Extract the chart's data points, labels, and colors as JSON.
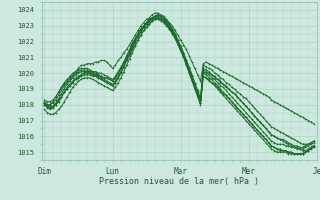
{
  "xlabel": "Pression niveau de la mer( hPa )",
  "ylim": [
    1014.5,
    1024.5
  ],
  "background_color": "#cce8df",
  "plot_bg_color": "#cce8df",
  "grid_color": "#aacfbf",
  "line_color": "#1a6b2a",
  "xtick_labels": [
    "Dim",
    "Lun",
    "Mar",
    "Mer",
    "Je"
  ],
  "xtick_positions": [
    0,
    24,
    48,
    72,
    96
  ],
  "ytick_values": [
    1015,
    1016,
    1017,
    1018,
    1019,
    1020,
    1021,
    1022,
    1023,
    1024
  ],
  "series": [
    [
      1018.0,
      1017.9,
      1018.0,
      1018.2,
      1018.5,
      1018.8,
      1019.1,
      1019.3,
      1019.5,
      1019.7,
      1019.9,
      1020.1,
      1020.3,
      1020.5,
      1020.5,
      1020.6,
      1020.6,
      1020.6,
      1020.7,
      1020.7,
      1020.8,
      1020.8,
      1020.7,
      1020.5,
      1020.3,
      1020.5,
      1020.8,
      1021.0,
      1021.3,
      1021.5,
      1021.8,
      1022.1,
      1022.4,
      1022.7,
      1023.0,
      1023.2,
      1023.4,
      1023.5,
      1023.7,
      1023.8,
      1023.8,
      1023.7,
      1023.6,
      1023.4,
      1023.2,
      1023.0,
      1022.7,
      1022.4,
      1022.1,
      1021.8,
      1021.5,
      1021.1,
      1020.7,
      1020.3,
      1019.9,
      1019.5,
      1020.6,
      1020.7,
      1020.6,
      1020.5,
      1020.4,
      1020.3,
      1020.2,
      1020.1,
      1020.0,
      1019.9,
      1019.8,
      1019.7,
      1019.6,
      1019.5,
      1019.4,
      1019.3,
      1019.2,
      1019.1,
      1019.0,
      1018.9,
      1018.8,
      1018.7,
      1018.6,
      1018.5,
      1018.3,
      1018.2,
      1018.1,
      1018.0,
      1017.9,
      1017.8,
      1017.7,
      1017.6,
      1017.5,
      1017.4,
      1017.3,
      1017.2,
      1017.1,
      1017.0,
      1016.9,
      1016.8
    ],
    [
      1018.0,
      1017.8,
      1017.7,
      1017.8,
      1018.0,
      1018.2,
      1018.5,
      1018.8,
      1019.0,
      1019.2,
      1019.4,
      1019.6,
      1019.7,
      1019.9,
      1020.0,
      1020.1,
      1020.1,
      1020.1,
      1020.1,
      1020.0,
      1020.0,
      1019.9,
      1019.8,
      1019.7,
      1019.6,
      1019.8,
      1020.1,
      1020.4,
      1020.7,
      1021.1,
      1021.4,
      1021.8,
      1022.1,
      1022.4,
      1022.7,
      1022.9,
      1023.1,
      1023.3,
      1023.5,
      1023.6,
      1023.6,
      1023.5,
      1023.4,
      1023.2,
      1023.0,
      1022.7,
      1022.4,
      1022.0,
      1021.6,
      1021.2,
      1020.7,
      1020.3,
      1019.8,
      1019.3,
      1018.8,
      1018.3,
      1020.5,
      1020.4,
      1020.3,
      1020.2,
      1020.0,
      1019.9,
      1019.7,
      1019.6,
      1019.4,
      1019.3,
      1019.1,
      1019.0,
      1018.8,
      1018.7,
      1018.5,
      1018.4,
      1018.2,
      1018.0,
      1017.8,
      1017.6,
      1017.4,
      1017.2,
      1017.0,
      1016.8,
      1016.6,
      1016.5,
      1016.4,
      1016.3,
      1016.2,
      1016.1,
      1016.0,
      1015.9,
      1015.8,
      1015.7,
      1015.6,
      1015.5,
      1015.5,
      1015.5,
      1015.6,
      1015.7
    ],
    [
      1018.1,
      1017.9,
      1017.8,
      1017.8,
      1018.0,
      1018.2,
      1018.5,
      1018.8,
      1019.1,
      1019.3,
      1019.5,
      1019.7,
      1019.8,
      1019.9,
      1020.0,
      1020.0,
      1020.0,
      1019.9,
      1019.9,
      1019.8,
      1019.7,
      1019.6,
      1019.5,
      1019.4,
      1019.3,
      1019.5,
      1019.8,
      1020.1,
      1020.4,
      1020.8,
      1021.1,
      1021.5,
      1021.8,
      1022.1,
      1022.4,
      1022.7,
      1022.9,
      1023.1,
      1023.3,
      1023.4,
      1023.4,
      1023.3,
      1023.2,
      1023.0,
      1022.8,
      1022.6,
      1022.3,
      1021.9,
      1021.5,
      1021.1,
      1020.6,
      1020.1,
      1019.6,
      1019.1,
      1018.6,
      1018.1,
      1020.2,
      1020.1,
      1020.0,
      1019.9,
      1019.7,
      1019.6,
      1019.4,
      1019.3,
      1019.1,
      1019.0,
      1018.8,
      1018.7,
      1018.5,
      1018.3,
      1018.1,
      1017.9,
      1017.7,
      1017.5,
      1017.3,
      1017.1,
      1016.9,
      1016.7,
      1016.5,
      1016.3,
      1016.1,
      1016.0,
      1015.9,
      1015.8,
      1015.7,
      1015.6,
      1015.5,
      1015.4,
      1015.3,
      1015.2,
      1015.2,
      1015.1,
      1015.1,
      1015.2,
      1015.3,
      1015.4
    ],
    [
      1018.2,
      1018.0,
      1018.0,
      1018.1,
      1018.3,
      1018.6,
      1018.9,
      1019.2,
      1019.4,
      1019.6,
      1019.8,
      1020.0,
      1020.1,
      1020.2,
      1020.2,
      1020.2,
      1020.1,
      1020.0,
      1019.9,
      1019.9,
      1019.8,
      1019.7,
      1019.7,
      1019.6,
      1019.5,
      1019.7,
      1020.0,
      1020.3,
      1020.7,
      1021.0,
      1021.4,
      1021.8,
      1022.1,
      1022.5,
      1022.8,
      1023.0,
      1023.2,
      1023.4,
      1023.5,
      1023.6,
      1023.7,
      1023.6,
      1023.5,
      1023.3,
      1023.1,
      1022.8,
      1022.5,
      1022.1,
      1021.7,
      1021.3,
      1020.8,
      1020.4,
      1019.9,
      1019.4,
      1018.9,
      1018.4,
      1020.3,
      1020.2,
      1020.1,
      1019.9,
      1019.8,
      1019.6,
      1019.5,
      1019.3,
      1019.2,
      1019.0,
      1018.8,
      1018.7,
      1018.5,
      1018.3,
      1018.1,
      1017.9,
      1017.7,
      1017.5,
      1017.3,
      1017.1,
      1016.9,
      1016.7,
      1016.5,
      1016.3,
      1016.1,
      1016.0,
      1015.9,
      1015.8,
      1015.8,
      1015.7,
      1015.6,
      1015.5,
      1015.4,
      1015.4,
      1015.3,
      1015.3,
      1015.4,
      1015.5,
      1015.6,
      1015.7
    ],
    [
      1017.7,
      1017.5,
      1017.4,
      1017.4,
      1017.5,
      1017.7,
      1017.9,
      1018.2,
      1018.5,
      1018.8,
      1019.1,
      1019.3,
      1019.5,
      1019.6,
      1019.7,
      1019.7,
      1019.7,
      1019.6,
      1019.5,
      1019.4,
      1019.3,
      1019.2,
      1019.1,
      1019.0,
      1018.9,
      1019.1,
      1019.4,
      1019.7,
      1020.1,
      1020.5,
      1020.9,
      1021.3,
      1021.7,
      1022.1,
      1022.4,
      1022.7,
      1022.9,
      1023.1,
      1023.3,
      1023.4,
      1023.5,
      1023.4,
      1023.3,
      1023.1,
      1022.9,
      1022.6,
      1022.3,
      1021.9,
      1021.5,
      1021.1,
      1020.6,
      1020.1,
      1019.6,
      1019.1,
      1018.6,
      1018.1,
      1019.8,
      1019.7,
      1019.6,
      1019.4,
      1019.3,
      1019.1,
      1018.9,
      1018.7,
      1018.6,
      1018.4,
      1018.2,
      1018.0,
      1017.8,
      1017.6,
      1017.4,
      1017.2,
      1017.0,
      1016.8,
      1016.6,
      1016.4,
      1016.2,
      1016.0,
      1015.8,
      1015.6,
      1015.4,
      1015.3,
      1015.2,
      1015.2,
      1015.1,
      1015.1,
      1015.0,
      1015.0,
      1014.9,
      1014.9,
      1014.9,
      1014.9,
      1015.0,
      1015.1,
      1015.2,
      1015.3
    ],
    [
      1018.0,
      1017.9,
      1017.8,
      1017.9,
      1018.1,
      1018.4,
      1018.7,
      1019.0,
      1019.3,
      1019.5,
      1019.7,
      1019.9,
      1020.0,
      1020.1,
      1020.1,
      1020.1,
      1020.0,
      1019.9,
      1019.8,
      1019.7,
      1019.6,
      1019.5,
      1019.4,
      1019.3,
      1019.2,
      1019.4,
      1019.7,
      1020.0,
      1020.4,
      1020.8,
      1021.2,
      1021.6,
      1022.0,
      1022.3,
      1022.6,
      1022.9,
      1023.1,
      1023.3,
      1023.4,
      1023.5,
      1023.5,
      1023.4,
      1023.3,
      1023.1,
      1022.8,
      1022.5,
      1022.2,
      1021.8,
      1021.4,
      1021.0,
      1020.5,
      1020.0,
      1019.5,
      1019.0,
      1018.5,
      1018.0,
      1020.0,
      1019.9,
      1019.7,
      1019.6,
      1019.4,
      1019.2,
      1019.0,
      1018.8,
      1018.6,
      1018.4,
      1018.2,
      1018.0,
      1017.8,
      1017.6,
      1017.4,
      1017.2,
      1017.0,
      1016.8,
      1016.6,
      1016.4,
      1016.2,
      1016.0,
      1015.8,
      1015.6,
      1015.4,
      1015.3,
      1015.2,
      1015.1,
      1015.1,
      1015.1,
      1015.0,
      1015.0,
      1014.9,
      1014.9,
      1014.9,
      1014.9,
      1015.0,
      1015.1,
      1015.3,
      1015.4
    ],
    [
      1018.3,
      1018.2,
      1018.2,
      1018.3,
      1018.5,
      1018.8,
      1019.1,
      1019.4,
      1019.6,
      1019.8,
      1020.0,
      1020.1,
      1020.2,
      1020.3,
      1020.3,
      1020.3,
      1020.2,
      1020.1,
      1020.0,
      1019.9,
      1019.8,
      1019.7,
      1019.7,
      1019.6,
      1019.5,
      1019.7,
      1020.0,
      1020.3,
      1020.7,
      1021.1,
      1021.5,
      1021.9,
      1022.2,
      1022.5,
      1022.8,
      1023.0,
      1023.2,
      1023.4,
      1023.5,
      1023.6,
      1023.7,
      1023.6,
      1023.5,
      1023.3,
      1023.1,
      1022.8,
      1022.5,
      1022.1,
      1021.7,
      1021.3,
      1020.8,
      1020.3,
      1019.8,
      1019.3,
      1018.8,
      1018.3,
      1020.1,
      1020.0,
      1019.9,
      1019.7,
      1019.6,
      1019.4,
      1019.2,
      1019.1,
      1018.9,
      1018.7,
      1018.5,
      1018.3,
      1018.1,
      1017.9,
      1017.7,
      1017.5,
      1017.3,
      1017.1,
      1016.9,
      1016.7,
      1016.5,
      1016.3,
      1016.1,
      1015.9,
      1015.7,
      1015.6,
      1015.5,
      1015.5,
      1015.5,
      1015.4,
      1015.4,
      1015.3,
      1015.3,
      1015.3,
      1015.2,
      1015.2,
      1015.3,
      1015.4,
      1015.5,
      1015.6
    ],
    [
      1018.1,
      1018.0,
      1017.9,
      1017.9,
      1018.1,
      1018.3,
      1018.5,
      1018.8,
      1019.0,
      1019.2,
      1019.4,
      1019.6,
      1019.7,
      1019.8,
      1019.9,
      1019.9,
      1019.9,
      1019.8,
      1019.8,
      1019.7,
      1019.6,
      1019.5,
      1019.4,
      1019.3,
      1019.2,
      1019.4,
      1019.7,
      1020.1,
      1020.5,
      1020.9,
      1021.3,
      1021.7,
      1022.0,
      1022.4,
      1022.7,
      1022.9,
      1023.1,
      1023.3,
      1023.4,
      1023.5,
      1023.5,
      1023.4,
      1023.3,
      1023.1,
      1022.9,
      1022.6,
      1022.3,
      1021.9,
      1021.5,
      1021.1,
      1020.6,
      1020.1,
      1019.6,
      1019.1,
      1018.6,
      1018.1,
      1019.8,
      1019.7,
      1019.5,
      1019.4,
      1019.2,
      1019.0,
      1018.8,
      1018.6,
      1018.4,
      1018.2,
      1018.0,
      1017.8,
      1017.6,
      1017.4,
      1017.2,
      1017.0,
      1016.8,
      1016.6,
      1016.4,
      1016.2,
      1016.0,
      1015.8,
      1015.6,
      1015.4,
      1015.2,
      1015.1,
      1015.0,
      1015.0,
      1015.0,
      1015.0,
      1014.9,
      1014.9,
      1014.9,
      1014.9,
      1014.9,
      1014.9,
      1015.0,
      1015.1,
      1015.3,
      1015.4
    ]
  ]
}
